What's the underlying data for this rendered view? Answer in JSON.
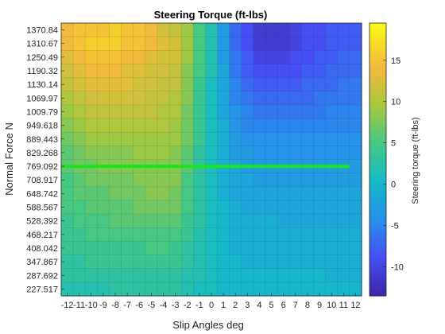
{
  "chart_data": {
    "type": "heatmap",
    "title": "Steering Torque (ft-lbs)",
    "xlabel": "Slip Angles deg",
    "ylabel": "Normal Force N",
    "colorbar_label": "Steering torque (ft-lbs)",
    "colormap": "parula",
    "grid": true,
    "x_ticks": [
      "-12",
      "-11",
      "-10",
      "-9",
      "-8",
      "-7",
      "-6",
      "-5",
      "-4",
      "-3",
      "-2",
      "-1",
      "0",
      "1",
      "2",
      "3",
      "4",
      "5",
      "6",
      "7",
      "8",
      "9",
      "10",
      "11",
      "12"
    ],
    "y_ticks": [
      "1370.84",
      "1310.67",
      "1250.49",
      "1190.32",
      "1130.14",
      "1069.97",
      "1009.79",
      "949.618",
      "889.443",
      "829.268",
      "769.092",
      "708.917",
      "648.742",
      "588.567",
      "528.392",
      "468.217",
      "408.042",
      "347.867",
      "287.692",
      "227.517"
    ],
    "color_range": [
      -13.5,
      19.5
    ],
    "colorbar_ticks": [
      15,
      10,
      5,
      0,
      -5,
      -10
    ],
    "highlight_line": {
      "y": 769.092,
      "x_range": [
        -12,
        11.5
      ],
      "color": "#19e619"
    },
    "approx_values": {
      "rows_top_to_bottom": [
        [
          14,
          15,
          15,
          15,
          16,
          15,
          15,
          14,
          12,
          11,
          9,
          5,
          2,
          -3,
          -7,
          -9,
          -11,
          -11,
          -11,
          -10,
          -9,
          -9,
          -8,
          -8,
          -8
        ],
        [
          14,
          15,
          16,
          16,
          16,
          15,
          15,
          14,
          13,
          12,
          9,
          5,
          2,
          -3,
          -7,
          -9,
          -11,
          -11,
          -11,
          -10,
          -9,
          -9,
          -8,
          -8,
          -8
        ],
        [
          13,
          14,
          15,
          15,
          15,
          14,
          14,
          13,
          12,
          12,
          9,
          5,
          2,
          -3,
          -6,
          -8,
          -10,
          -10,
          -10,
          -9,
          -9,
          -8,
          -8,
          -7,
          -7
        ],
        [
          12,
          13,
          14,
          14,
          14,
          13,
          13,
          12,
          12,
          11,
          8,
          5,
          2,
          -2,
          -6,
          -8,
          -9,
          -9,
          -9,
          -9,
          -8,
          -8,
          -7,
          -7,
          -7
        ],
        [
          11,
          12,
          13,
          13,
          13,
          13,
          12,
          12,
          11,
          11,
          8,
          4,
          1,
          -2,
          -5,
          -7,
          -8,
          -8,
          -8,
          -8,
          -7,
          -7,
          -7,
          -6,
          -6
        ],
        [
          10,
          11,
          12,
          12,
          12,
          12,
          12,
          11,
          11,
          10,
          8,
          4,
          1,
          -2,
          -5,
          -6,
          -7,
          -7,
          -7,
          -7,
          -7,
          -6,
          -6,
          -6,
          -6
        ],
        [
          9,
          10,
          11,
          11,
          11,
          11,
          11,
          11,
          10,
          10,
          7,
          4,
          1,
          -2,
          -4,
          -5,
          -6,
          -6,
          -6,
          -6,
          -6,
          -6,
          -5,
          -5,
          -5
        ],
        [
          8,
          9,
          10,
          10,
          10,
          10,
          10,
          10,
          10,
          9,
          7,
          4,
          1,
          -1,
          -4,
          -5,
          -5,
          -5,
          -5,
          -5,
          -5,
          -5,
          -5,
          -5,
          -5
        ],
        [
          7,
          8,
          9,
          9,
          9,
          9,
          9,
          9,
          9,
          9,
          7,
          4,
          1,
          -1,
          -3,
          -4,
          -4,
          -4,
          -4,
          -4,
          -4,
          -4,
          -4,
          -4,
          -4
        ],
        [
          6,
          7,
          8,
          8,
          8,
          8,
          9,
          9,
          9,
          8,
          6,
          3,
          1,
          -1,
          -3,
          -3,
          -4,
          -4,
          -4,
          -4,
          -4,
          -4,
          -4,
          -4,
          -4
        ],
        [
          6,
          7,
          7,
          8,
          8,
          8,
          8,
          8,
          8,
          8,
          6,
          3,
          1,
          -1,
          -2,
          -3,
          -3,
          -3,
          -3,
          -3,
          -3,
          -3,
          -3,
          -3,
          -3
        ],
        [
          5,
          6,
          7,
          7,
          7,
          7,
          8,
          8,
          8,
          8,
          5,
          3,
          1,
          -1,
          -2,
          -2,
          -3,
          -3,
          -3,
          -3,
          -3,
          -3,
          -3,
          -3,
          -3
        ],
        [
          5,
          6,
          6,
          6,
          7,
          7,
          7,
          8,
          8,
          7,
          5,
          3,
          1,
          -1,
          -2,
          -2,
          -2,
          -2,
          -2,
          -2,
          -2,
          -2,
          -2,
          -2,
          -2
        ],
        [
          5,
          5,
          6,
          6,
          6,
          6,
          7,
          7,
          7,
          7,
          5,
          3,
          1,
          0,
          -1,
          -2,
          -2,
          -2,
          -2,
          -2,
          -2,
          -2,
          -2,
          -2,
          -2
        ],
        [
          4,
          5,
          5,
          5,
          6,
          6,
          6,
          6,
          6,
          6,
          4,
          3,
          1,
          0,
          -1,
          -1,
          -1,
          -1,
          -2,
          -2,
          -2,
          -2,
          -2,
          -2,
          -2
        ],
        [
          4,
          4,
          5,
          5,
          5,
          5,
          5,
          5,
          5,
          5,
          4,
          2,
          1,
          0,
          -1,
          -1,
          -1,
          -1,
          -1,
          -1,
          -1,
          -1,
          -1,
          -1,
          -1
        ],
        [
          4,
          4,
          4,
          4,
          4,
          4,
          4,
          5,
          5,
          4,
          3,
          2,
          1,
          0,
          -1,
          -1,
          -1,
          -1,
          -1,
          -1,
          -1,
          -1,
          -1,
          -1,
          -1
        ],
        [
          3,
          3,
          4,
          4,
          4,
          4,
          4,
          4,
          4,
          4,
          3,
          2,
          1,
          0,
          0,
          -1,
          -1,
          -1,
          -1,
          -1,
          -1,
          -1,
          -1,
          -1,
          -1
        ],
        [
          3,
          3,
          3,
          3,
          3,
          3,
          3,
          3,
          3,
          3,
          2,
          2,
          1,
          0,
          0,
          0,
          0,
          0,
          0,
          0,
          0,
          0,
          -1,
          -1,
          -1
        ],
        [
          2,
          2,
          2,
          2,
          3,
          3,
          3,
          3,
          3,
          3,
          2,
          1,
          1,
          0,
          0,
          0,
          0,
          0,
          0,
          0,
          0,
          0,
          0,
          0,
          0
        ]
      ]
    }
  }
}
